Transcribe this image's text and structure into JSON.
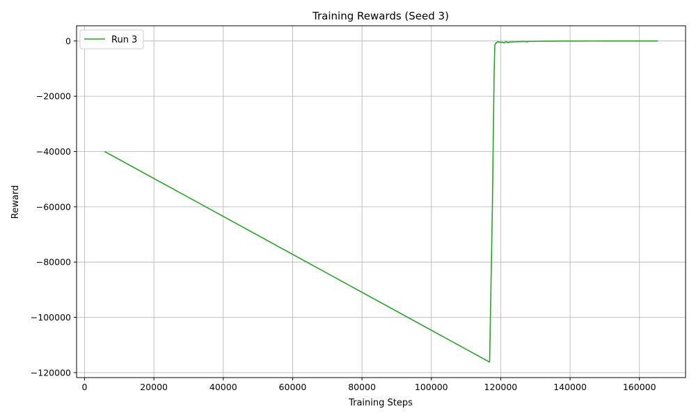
{
  "chart_data": {
    "type": "line",
    "title": "Training Rewards (Seed 3)",
    "xlabel": "Training Steps",
    "ylabel": "Reward",
    "xlim": [
      -2300,
      173300
    ],
    "ylim": [
      -121800,
      5500
    ],
    "xticks": [
      0,
      20000,
      40000,
      60000,
      80000,
      100000,
      120000,
      140000,
      160000
    ],
    "yticks": [
      0,
      -20000,
      -40000,
      -60000,
      -80000,
      -100000,
      -120000
    ],
    "xtick_labels": [
      "0",
      "20000",
      "40000",
      "60000",
      "80000",
      "100000",
      "120000",
      "140000",
      "160000"
    ],
    "ytick_labels": [
      "0",
      "−20000",
      "−40000",
      "−60000",
      "−80000",
      "−100000",
      "−120000"
    ],
    "grid": true,
    "legend": {
      "placement": "upper-left",
      "entries": [
        "Run 3"
      ]
    },
    "series": [
      {
        "name": "Run 3",
        "color": "#2ca02c",
        "points": [
          [
            5800,
            -40000
          ],
          [
            116800,
            -116200
          ],
          [
            117600,
            -60000
          ],
          [
            118100,
            -12000
          ],
          [
            118300,
            -1500
          ],
          [
            118700,
            -600
          ],
          [
            119100,
            -300
          ],
          [
            119600,
            -400
          ],
          [
            120100,
            -500
          ],
          [
            120600,
            -450
          ],
          [
            121000,
            -700
          ],
          [
            121500,
            -200
          ],
          [
            122000,
            -600
          ],
          [
            122500,
            -350
          ],
          [
            123000,
            -400
          ],
          [
            124000,
            -300
          ],
          [
            125000,
            -250
          ],
          [
            126000,
            -200
          ],
          [
            127000,
            -150
          ],
          [
            127500,
            -350
          ],
          [
            128000,
            -150
          ],
          [
            130000,
            -120
          ],
          [
            132000,
            -80
          ],
          [
            134000,
            -60
          ],
          [
            136000,
            -50
          ],
          [
            138000,
            -40
          ],
          [
            140000,
            -30
          ],
          [
            143000,
            -20
          ],
          [
            146000,
            -15
          ],
          [
            150000,
            -10
          ],
          [
            155000,
            -8
          ],
          [
            160000,
            -5
          ],
          [
            165300,
            -3
          ]
        ]
      }
    ]
  }
}
